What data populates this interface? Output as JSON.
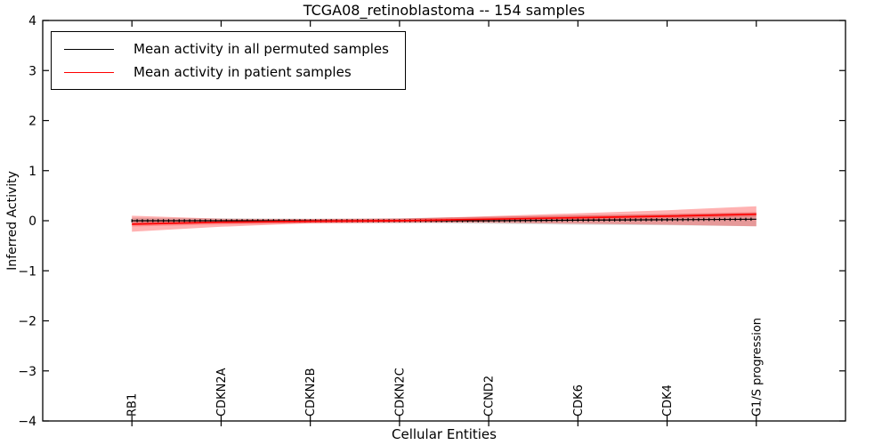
{
  "chart_data": {
    "type": "line",
    "title": "TCGA08_retinoblastoma -- 154 samples",
    "xlabel": "Cellular Entities",
    "ylabel": "Inferred Activity",
    "ylim": [
      -4,
      4
    ],
    "yticks": [
      4,
      3,
      2,
      1,
      0,
      -1,
      -2,
      -3,
      -4
    ],
    "grid": false,
    "legend_position": "upper left",
    "categories": [
      "RB1",
      "CDKN2A",
      "CDKN2B",
      "CDKN2C",
      "CCND2",
      "CDK6",
      "CDK4",
      "G1/S progression"
    ],
    "series": [
      {
        "name": "Mean activity in all permuted samples",
        "color": "#000000",
        "band_color": "#999999",
        "values": [
          0.0,
          0.0,
          0.0,
          0.0,
          0.0,
          0.01,
          0.02,
          0.03
        ],
        "band_upper": [
          0.06,
          0.05,
          0.04,
          0.05,
          0.08,
          0.11,
          0.13,
          0.16
        ],
        "band_lower": [
          -0.06,
          -0.05,
          -0.04,
          -0.05,
          -0.06,
          -0.08,
          -0.09,
          -0.11
        ]
      },
      {
        "name": "Mean activity in patient samples",
        "color": "#ff0000",
        "band_color": "#ff0000",
        "values": [
          -0.07,
          -0.03,
          -0.01,
          0.0,
          0.03,
          0.06,
          0.09,
          0.13
        ],
        "band_upper": [
          0.1,
          0.04,
          0.03,
          0.04,
          0.09,
          0.15,
          0.21,
          0.29
        ],
        "band_lower": [
          -0.22,
          -0.12,
          -0.05,
          -0.03,
          -0.04,
          -0.06,
          -0.08,
          -0.11
        ]
      }
    ]
  }
}
